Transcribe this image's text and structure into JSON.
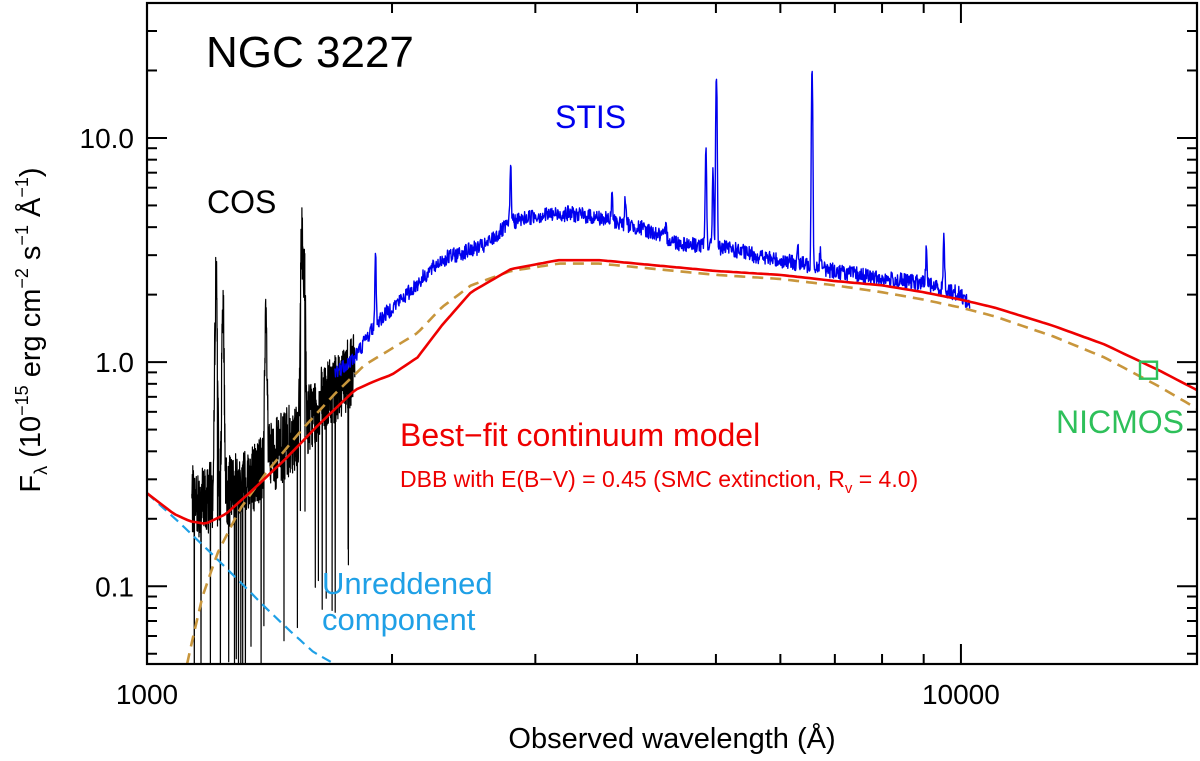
{
  "chart_data": {
    "type": "line",
    "title": "NGC 3227",
    "xlabel": "Observed wavelength (Å)",
    "ylabel": {
      "base": "F",
      "sub": "λ",
      "open": " (10",
      "exp1": "−15",
      "unit1": " erg cm",
      "exp2": "−2",
      "unit2": " s",
      "exp3": "−1",
      "unit3": " Å",
      "exp4": "−1",
      "close": ")"
    },
    "xscale": "log",
    "yscale": "log",
    "xlim": [
      1000,
      19500
    ],
    "ylim": [
      0.045,
      40
    ],
    "x_ticks": [
      1000,
      10000
    ],
    "x_tick_labels": [
      "1000",
      "10000"
    ],
    "y_ticks": [
      0.1,
      1.0,
      10.0
    ],
    "y_tick_labels": [
      "0.1",
      "1.0",
      "10.0"
    ],
    "labels": {
      "cos": "COS",
      "stis": "STIS",
      "nicmos": "NICMOS",
      "unreddened_line1": "Unreddened",
      "unreddened_line2": "component",
      "model_title": "Best−fit continuum model",
      "model_detail_a": "DBB with E(B−V) = 0.45 (SMC extinction, R",
      "model_detail_sub": "v",
      "model_detail_b": " = 4.0)"
    },
    "colors": {
      "cos": "#000000",
      "stis": "#0000ee",
      "model": "#ee0000",
      "reddened": "#c8963c",
      "unreddened": "#1fa0e6",
      "nicmos": "#2ec05a"
    },
    "series": [
      {
        "name": "Best-fit continuum model",
        "style": "solid",
        "x": [
          1000,
          1080,
          1130,
          1180,
          1250,
          1350,
          1480,
          1620,
          1800,
          1900,
          2000,
          2150,
          2300,
          2500,
          2800,
          3200,
          3600,
          4000,
          5000,
          6000,
          7000,
          8000,
          9000,
          10000,
          11000,
          13000,
          15000,
          17500,
          19500
        ],
        "y": [
          0.26,
          0.21,
          0.195,
          0.19,
          0.21,
          0.27,
          0.37,
          0.52,
          0.75,
          0.82,
          0.88,
          1.05,
          1.45,
          2.05,
          2.6,
          2.85,
          2.85,
          2.75,
          2.55,
          2.45,
          2.3,
          2.2,
          2.05,
          1.9,
          1.75,
          1.45,
          1.2,
          0.92,
          0.75
        ]
      },
      {
        "name": "Reddened DBB",
        "style": "dashed",
        "x": [
          1120,
          1140,
          1170,
          1220,
          1300,
          1400,
          1550,
          1700,
          1850,
          2000,
          2150,
          2300,
          2500,
          2800,
          3200,
          3600,
          4000,
          5000,
          6000,
          7000,
          8000,
          9000,
          10000,
          11000,
          13000,
          15000,
          17500,
          19500
        ],
        "y": [
          0.045,
          0.06,
          0.09,
          0.14,
          0.22,
          0.32,
          0.5,
          0.72,
          0.97,
          1.15,
          1.35,
          1.75,
          2.2,
          2.55,
          2.75,
          2.75,
          2.65,
          2.45,
          2.35,
          2.2,
          2.05,
          1.9,
          1.75,
          1.6,
          1.3,
          1.05,
          0.78,
          0.62
        ]
      },
      {
        "name": "Unreddened component",
        "style": "dashed",
        "x": [
          1000,
          1100,
          1200,
          1300,
          1400,
          1500,
          1600,
          1700
        ],
        "y": [
          0.26,
          0.19,
          0.14,
          0.105,
          0.08,
          0.063,
          0.051,
          0.045
        ]
      },
      {
        "name": "COS spectrum",
        "style": "noisy",
        "wavelength_range": [
          1135,
          1800
        ],
        "continuum_x": [
          1135,
          1160,
          1200,
          1250,
          1300,
          1350,
          1400,
          1450,
          1500,
          1550,
          1600,
          1650,
          1700,
          1750,
          1800
        ],
        "continuum_y": [
          0.24,
          0.24,
          0.25,
          0.26,
          0.28,
          0.31,
          0.35,
          0.4,
          0.45,
          0.52,
          0.6,
          0.68,
          0.76,
          0.85,
          0.95
        ],
        "features_x": [
          1216,
          1240,
          1400,
          1549,
          1560
        ],
        "features_y": [
          2.5,
          1.6,
          1.4,
          3.5,
          2.6
        ]
      },
      {
        "name": "STIS spectrum",
        "style": "noisy",
        "wavelength_range": [
          1700,
          10250
        ],
        "continuum_x": [
          1700,
          1800,
          1900,
          2000,
          2100,
          2200,
          2300,
          2450,
          2600,
          2800,
          3000,
          3300,
          3600,
          3800,
          4100,
          4500,
          4850,
          5200,
          5800,
          6500,
          7000,
          8000,
          9000,
          10000,
          10250
        ],
        "continuum_y": [
          0.9,
          1.05,
          1.45,
          1.75,
          2.05,
          2.45,
          2.85,
          3.1,
          3.3,
          4.2,
          4.5,
          4.6,
          4.4,
          4.2,
          3.9,
          3.4,
          3.3,
          3.2,
          2.9,
          2.7,
          2.55,
          2.35,
          2.25,
          2.0,
          1.8
        ],
        "features_x": [
          1909,
          2798,
          3727,
          3869,
          4340,
          4861,
          4959,
          5007,
          6300,
          6563,
          6716,
          9069,
          9531
        ],
        "features_y": [
          2.9,
          7.6,
          5.6,
          5.3,
          4.0,
          9.0,
          7.2,
          20.0,
          3.3,
          21.0,
          3.2,
          3.3,
          3.6
        ]
      },
      {
        "name": "NICMOS",
        "style": "marker",
        "x": [
          17000
        ],
        "y": [
          0.92
        ]
      }
    ]
  }
}
